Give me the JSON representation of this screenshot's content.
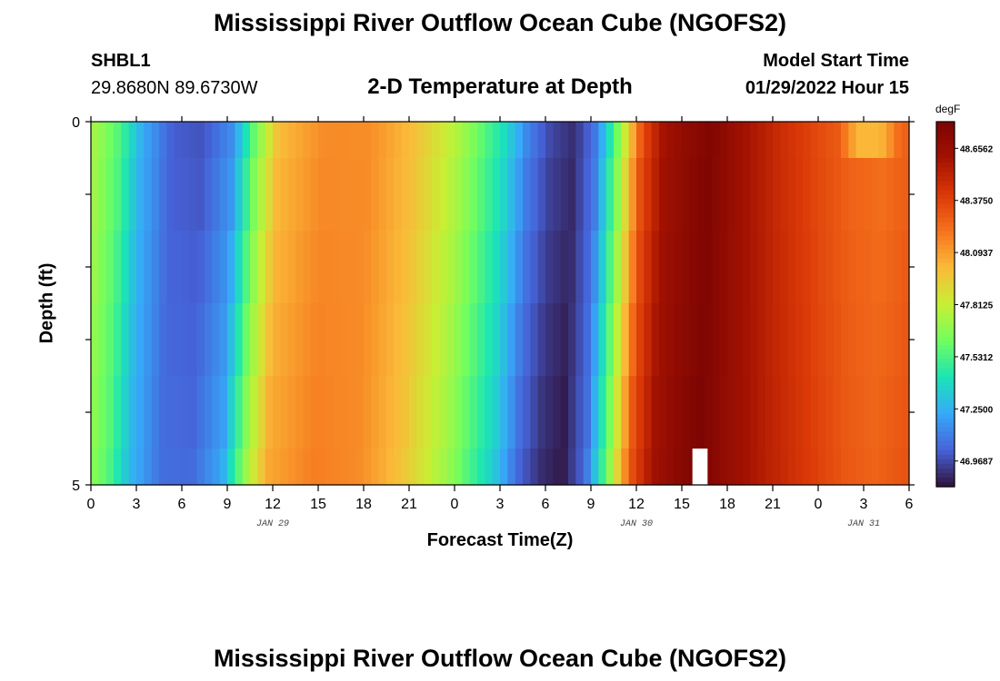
{
  "header": {
    "title": "Mississippi River Outflow Ocean Cube (NGOFS2)",
    "station_id": "SHBL1",
    "coordinates": "29.8680N  89.6730W",
    "subtitle": "2-D Temperature at Depth",
    "model_start_label": "Model Start Time",
    "model_start_value": "01/29/2022 Hour 15"
  },
  "footer": {
    "title": "Mississippi River Outflow Ocean Cube (NGOFS2)"
  },
  "chart_data": {
    "type": "heatmap",
    "title": "2-D Temperature at Depth",
    "xlabel": "Forecast Time(Z)",
    "ylabel": "Depth (ft)",
    "x_tick_labels": [
      "0",
      "3",
      "6",
      "9",
      "12",
      "15",
      "18",
      "21",
      "0",
      "3",
      "6",
      "9",
      "12",
      "15",
      "18",
      "21",
      "0",
      "3",
      "6"
    ],
    "date_labels": [
      {
        "label": "JAN 29",
        "hour": 12
      },
      {
        "label": "JAN 30",
        "hour": 36
      },
      {
        "label": "JAN 31",
        "hour": 51
      }
    ],
    "xlim_hours": [
      0,
      54
    ],
    "y_tick_labels": [
      "0",
      "5"
    ],
    "ylim_ft": [
      0,
      5
    ],
    "depth_levels_ft": [
      0,
      0.5,
      1.5,
      2.5,
      3.5,
      4.5,
      5
    ],
    "colorbar": {
      "unit": "degF",
      "tick_labels": [
        "48.6562",
        "48.3750",
        "48.0937",
        "47.8125",
        "47.5312",
        "47.2500",
        "46.9687"
      ],
      "tick_values": [
        48.6562,
        48.375,
        48.0937,
        47.8125,
        47.5312,
        47.25,
        46.9687
      ],
      "min": 46.83,
      "max": 48.8,
      "colormap": "turbo"
    },
    "profile_hours": [
      0,
      1.5,
      3,
      5,
      7,
      9,
      10.5,
      12,
      15,
      18,
      21,
      24,
      27,
      28.5,
      30,
      31.5,
      33,
      34.5,
      36,
      37.5,
      39,
      40.5,
      42,
      45,
      48,
      50,
      52,
      54
    ],
    "profile_temps_degF": [
      47.72,
      47.55,
      47.25,
      47.04,
      47.02,
      47.18,
      47.65,
      48.03,
      48.16,
      48.14,
      47.98,
      47.72,
      47.36,
      47.08,
      46.93,
      46.87,
      47.08,
      47.65,
      48.32,
      48.62,
      48.71,
      48.78,
      48.68,
      48.5,
      48.36,
      48.28,
      48.24,
      48.3
    ],
    "surface_anomaly": {
      "hour_from": 49,
      "hour_to": 53,
      "temp_degF": 48.02
    },
    "missing_cell": {
      "hour_from": 39.7,
      "hour_to": 40.7,
      "depth_from_ft": 4.5,
      "depth_to_ft": 5
    }
  }
}
